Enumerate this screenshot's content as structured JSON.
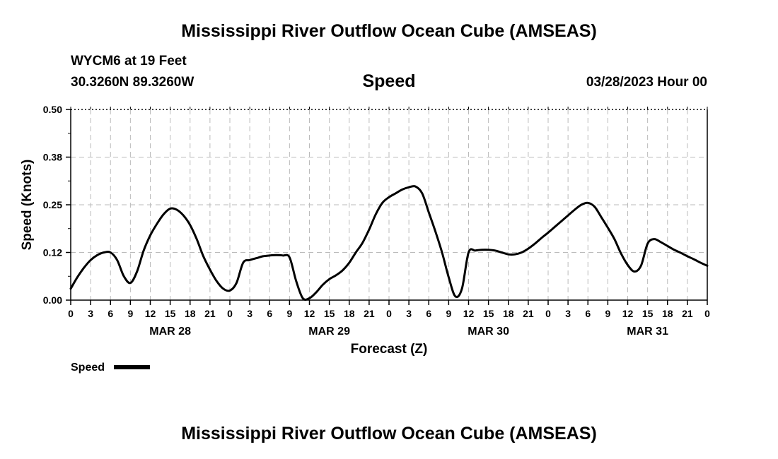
{
  "page": {
    "title": "Mississippi River Outflow Ocean Cube (AMSEAS)",
    "station": "WYCM6 at 19 Feet",
    "coords": "30.3260N  89.3260W",
    "variable": "Speed",
    "datetime": "03/28/2023 Hour 00",
    "footer_title": "Mississippi River Outflow Ocean Cube (AMSEAS)"
  },
  "chart_data": {
    "type": "line",
    "xlabel": "Forecast (Z)",
    "ylabel": "Speed (Knots)",
    "ylim": [
      0,
      0.5
    ],
    "yticks": [
      "0.00",
      "0.12",
      "0.25",
      "0.38",
      "0.50"
    ],
    "xlim": [
      0,
      96
    ],
    "xtick_labels": [
      "0",
      "3",
      "6",
      "9",
      "12",
      "15",
      "18",
      "21",
      "0",
      "3",
      "6",
      "9",
      "12",
      "15",
      "18",
      "21",
      "0",
      "3",
      "6",
      "9",
      "12",
      "15",
      "18",
      "21",
      "0",
      "3",
      "6",
      "9",
      "12",
      "15",
      "18",
      "21",
      "0"
    ],
    "day_labels": [
      "MAR 28",
      "MAR 29",
      "MAR 30",
      "MAR 31"
    ],
    "grid": true,
    "legend": {
      "position": "bottom-left",
      "label": "Speed"
    },
    "series": [
      {
        "name": "Speed",
        "color": "#000000",
        "x": [
          0,
          1,
          2,
          3,
          4,
          5,
          6,
          7,
          8,
          9,
          10,
          11,
          12,
          13,
          14,
          15,
          16,
          17,
          18,
          19,
          20,
          21,
          22,
          23,
          24,
          25,
          26,
          27,
          28,
          29,
          30,
          31,
          32,
          33,
          34,
          35,
          36,
          37,
          38,
          39,
          40,
          41,
          42,
          43,
          44,
          45,
          46,
          47,
          48,
          49,
          50,
          51,
          52,
          53,
          54,
          55,
          56,
          57,
          58,
          59,
          60,
          61,
          62,
          63,
          64,
          65,
          66,
          67,
          68,
          69,
          70,
          71,
          72,
          73,
          74,
          75,
          76,
          77,
          78,
          79,
          80,
          81,
          82,
          83,
          84,
          85,
          86,
          87,
          88,
          89,
          90,
          91,
          92,
          93,
          94,
          95,
          96
        ],
        "values": [
          0.03,
          0.06,
          0.085,
          0.105,
          0.118,
          0.125,
          0.125,
          0.105,
          0.063,
          0.045,
          0.075,
          0.13,
          0.17,
          0.2,
          0.225,
          0.24,
          0.237,
          0.222,
          0.197,
          0.16,
          0.115,
          0.08,
          0.05,
          0.03,
          0.025,
          0.045,
          0.098,
          0.105,
          0.11,
          0.115,
          0.117,
          0.118,
          0.117,
          0.112,
          0.05,
          0.005,
          0.005,
          0.02,
          0.04,
          0.055,
          0.065,
          0.078,
          0.098,
          0.125,
          0.15,
          0.185,
          0.225,
          0.255,
          0.27,
          0.28,
          0.29,
          0.296,
          0.298,
          0.28,
          0.23,
          0.18,
          0.125,
          0.06,
          0.01,
          0.03,
          0.125,
          0.13,
          0.132,
          0.132,
          0.13,
          0.125,
          0.12,
          0.12,
          0.125,
          0.135,
          0.148,
          0.163,
          0.177,
          0.192,
          0.207,
          0.222,
          0.237,
          0.25,
          0.255,
          0.245,
          0.218,
          0.19,
          0.16,
          0.122,
          0.092,
          0.075,
          0.09,
          0.148,
          0.16,
          0.152,
          0.142,
          0.132,
          0.124,
          0.115,
          0.107,
          0.098,
          0.09
        ]
      }
    ]
  }
}
